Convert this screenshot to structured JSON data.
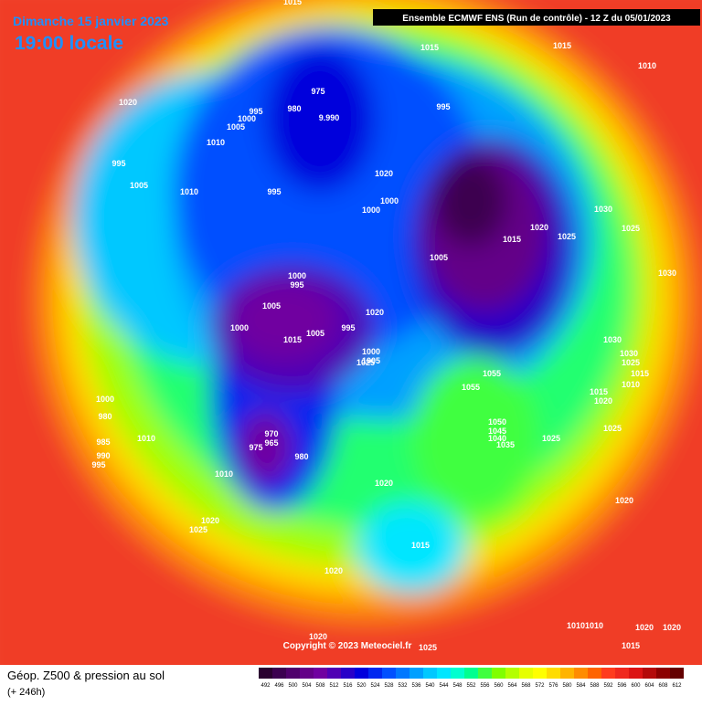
{
  "header": {
    "date": "Dimanche 15 janvier 2023",
    "time": "19:00 locale",
    "model": "Ensemble ECMWF ENS  (Run de contrôle)  -  12 Z du 05/01/2023"
  },
  "footer": {
    "field": "Géop. Z500 & pression au sol",
    "lead": "(+ 246h)",
    "copyright": "Copyright © 2023 Meteociel.fr"
  },
  "legend": {
    "values": [
      492,
      496,
      500,
      504,
      508,
      512,
      516,
      520,
      524,
      528,
      532,
      536,
      540,
      544,
      548,
      552,
      556,
      560,
      564,
      568,
      572,
      576,
      580,
      584,
      588,
      592,
      596,
      600,
      604,
      608,
      612
    ],
    "colors": [
      "#2a0030",
      "#3c0050",
      "#50006c",
      "#640088",
      "#7000a0",
      "#5000b4",
      "#2800c8",
      "#0000dc",
      "#0028f0",
      "#0050ff",
      "#0078ff",
      "#00a0ff",
      "#00c8ff",
      "#00e6ff",
      "#00ffd0",
      "#00ff90",
      "#40ff40",
      "#80ff00",
      "#b4ff00",
      "#e6ff00",
      "#ffff00",
      "#ffdc00",
      "#ffb400",
      "#ff8c00",
      "#ff6400",
      "#ff3c1e",
      "#f0281e",
      "#dc1414",
      "#b40a0a",
      "#8c0000",
      "#640000"
    ]
  },
  "isobar_labels": [
    "1015",
    "1015",
    "1015",
    "1010",
    "1020",
    "995",
    "975",
    "980",
    "9.990",
    "1000",
    "1005",
    "1010",
    "1020",
    "995",
    "995",
    "1005",
    "1010",
    "995",
    "1000",
    "1000",
    "1005",
    "1015",
    "1020",
    "1025",
    "1030",
    "1025",
    "1030",
    "1000",
    "995",
    "1005",
    "1000",
    "1005",
    "1015",
    "995",
    "1000",
    "1005",
    "1020",
    "1030",
    "1055",
    "1055",
    "1050",
    "1045",
    "1040",
    "1035",
    "1025",
    "970",
    "965",
    "975",
    "980",
    "1000",
    "980",
    "985",
    "990",
    "995",
    "1010",
    "1010",
    "1020",
    "1025",
    "1020",
    "1020",
    "1015",
    "1020",
    "1020",
    "1025",
    "1020",
    "1010",
    "1010",
    "1015",
    "1020",
    "1025",
    "1030",
    "1025",
    "1015",
    "1010",
    "1015",
    "1020",
    "1025"
  ]
}
